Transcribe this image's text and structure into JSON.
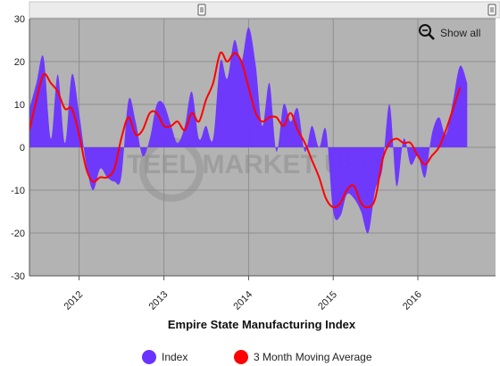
{
  "chart_data": {
    "type": "area",
    "title": "Empire State Manufacturing Index",
    "xlabel": "",
    "ylabel": "",
    "ylim": [
      -30,
      30
    ],
    "y_ticks": [
      30,
      20,
      10,
      0,
      -10,
      -20,
      -30
    ],
    "x_range": [
      "2011-06-01",
      "2016-12-01"
    ],
    "x_ticks": [
      {
        "label": "2012",
        "date": "2012-01-01"
      },
      {
        "label": "2013",
        "date": "2013-01-01"
      },
      {
        "label": "2014",
        "date": "2014-01-01"
      },
      {
        "label": "2015",
        "date": "2015-01-01"
      },
      {
        "label": "2016",
        "date": "2016-01-01"
      }
    ],
    "grid": true,
    "legend_position": "bottom",
    "series": [
      {
        "name": "Index",
        "type": "area",
        "color": "#6a33ff",
        "points": [
          [
            "2011-06-01",
            9
          ],
          [
            "2011-07-01",
            15
          ],
          [
            "2011-08-01",
            21
          ],
          [
            "2011-09-01",
            2
          ],
          [
            "2011-10-01",
            17
          ],
          [
            "2011-11-01",
            1
          ],
          [
            "2011-12-01",
            17
          ],
          [
            "2012-01-01",
            8
          ],
          [
            "2012-02-01",
            -4
          ],
          [
            "2012-03-01",
            -10
          ],
          [
            "2012-04-01",
            -5
          ],
          [
            "2012-05-01",
            -7
          ],
          [
            "2012-06-01",
            -8
          ],
          [
            "2012-07-01",
            -7
          ],
          [
            "2012-08-01",
            11
          ],
          [
            "2012-09-01",
            6
          ],
          [
            "2012-10-01",
            -2
          ],
          [
            "2012-11-01",
            2
          ],
          [
            "2012-12-01",
            10
          ],
          [
            "2013-01-01",
            10
          ],
          [
            "2013-02-01",
            5
          ],
          [
            "2013-03-01",
            1
          ],
          [
            "2013-04-01",
            5
          ],
          [
            "2013-05-01",
            13
          ],
          [
            "2013-06-01",
            2
          ],
          [
            "2013-07-01",
            5
          ],
          [
            "2013-08-01",
            2
          ],
          [
            "2013-09-01",
            20
          ],
          [
            "2013-10-01",
            16
          ],
          [
            "2013-11-01",
            25
          ],
          [
            "2013-12-01",
            20
          ],
          [
            "2014-01-01",
            28
          ],
          [
            "2014-02-01",
            19
          ],
          [
            "2014-03-01",
            5
          ],
          [
            "2014-04-01",
            15
          ],
          [
            "2014-05-01",
            -1
          ],
          [
            "2014-06-01",
            10
          ],
          [
            "2014-07-01",
            6
          ],
          [
            "2014-08-01",
            9
          ],
          [
            "2014-09-01",
            -1
          ],
          [
            "2014-10-01",
            5
          ],
          [
            "2014-11-01",
            0
          ],
          [
            "2014-12-01",
            4
          ],
          [
            "2015-01-01",
            -15
          ],
          [
            "2015-02-01",
            -16
          ],
          [
            "2015-03-01",
            -11
          ],
          [
            "2015-04-01",
            -12
          ],
          [
            "2015-05-01",
            -15
          ],
          [
            "2015-06-01",
            -20
          ],
          [
            "2015-07-01",
            -10
          ],
          [
            "2015-08-01",
            -5
          ],
          [
            "2015-09-01",
            10
          ],
          [
            "2015-10-01",
            -9
          ],
          [
            "2015-11-01",
            2
          ],
          [
            "2015-12-01",
            -4
          ],
          [
            "2016-01-01",
            -2
          ],
          [
            "2016-02-01",
            -7
          ],
          [
            "2016-03-01",
            3
          ],
          [
            "2016-04-01",
            7
          ],
          [
            "2016-05-01",
            3
          ],
          [
            "2016-06-01",
            11
          ],
          [
            "2016-07-01",
            19
          ],
          [
            "2016-08-01",
            15
          ]
        ]
      },
      {
        "name": "3 Month Moving Average",
        "type": "line",
        "color": "#ff0000",
        "points": [
          [
            "2011-06-01",
            4
          ],
          [
            "2011-07-01",
            11
          ],
          [
            "2011-08-01",
            17
          ],
          [
            "2011-09-01",
            15
          ],
          [
            "2011-10-01",
            13
          ],
          [
            "2011-11-01",
            9
          ],
          [
            "2011-12-01",
            9
          ],
          [
            "2012-01-01",
            3
          ],
          [
            "2012-02-01",
            -5
          ],
          [
            "2012-03-01",
            -8
          ],
          [
            "2012-04-01",
            -7
          ],
          [
            "2012-05-01",
            -7
          ],
          [
            "2012-06-01",
            -5
          ],
          [
            "2012-07-01",
            2
          ],
          [
            "2012-08-01",
            7
          ],
          [
            "2012-09-01",
            3
          ],
          [
            "2012-10-01",
            4
          ],
          [
            "2012-11-01",
            8
          ],
          [
            "2012-12-01",
            8
          ],
          [
            "2013-01-01",
            5
          ],
          [
            "2013-02-01",
            5
          ],
          [
            "2013-03-01",
            6
          ],
          [
            "2013-04-01",
            4
          ],
          [
            "2013-05-01",
            8
          ],
          [
            "2013-06-01",
            6
          ],
          [
            "2013-07-01",
            11
          ],
          [
            "2013-08-01",
            15
          ],
          [
            "2013-09-01",
            22
          ],
          [
            "2013-10-01",
            20
          ],
          [
            "2013-11-01",
            22
          ],
          [
            "2013-12-01",
            20
          ],
          [
            "2014-01-01",
            14
          ],
          [
            "2014-02-01",
            8
          ],
          [
            "2014-03-01",
            6
          ],
          [
            "2014-04-01",
            7
          ],
          [
            "2014-05-01",
            7
          ],
          [
            "2014-06-01",
            5
          ],
          [
            "2014-07-01",
            8
          ],
          [
            "2014-08-01",
            4
          ],
          [
            "2014-09-01",
            1
          ],
          [
            "2014-10-01",
            -3
          ],
          [
            "2014-11-01",
            -7
          ],
          [
            "2014-12-01",
            -12
          ],
          [
            "2015-01-01",
            -14
          ],
          [
            "2015-02-01",
            -13
          ],
          [
            "2015-03-01",
            -10
          ],
          [
            "2015-04-01",
            -9
          ],
          [
            "2015-05-01",
            -13
          ],
          [
            "2015-06-01",
            -14
          ],
          [
            "2015-07-01",
            -12
          ],
          [
            "2015-08-01",
            -3
          ],
          [
            "2015-09-01",
            1
          ],
          [
            "2015-10-01",
            2
          ],
          [
            "2015-11-01",
            1
          ],
          [
            "2015-12-01",
            1
          ],
          [
            "2016-01-01",
            -2
          ],
          [
            "2016-02-01",
            -4
          ],
          [
            "2016-03-01",
            -2
          ],
          [
            "2016-04-01",
            0
          ],
          [
            "2016-05-01",
            4
          ],
          [
            "2016-06-01",
            9
          ],
          [
            "2016-07-01",
            14
          ]
        ]
      }
    ]
  },
  "navigator": {
    "handle_icon": "drag-handle-icon"
  },
  "zoom": {
    "label": "Show all",
    "icon": "zoom-out-icon"
  },
  "watermark": {
    "text": "TEEL MARKET UPD"
  },
  "legend": {
    "items": [
      {
        "label": "Index",
        "color": "#6a33ff"
      },
      {
        "label": "3 Month Moving Average",
        "color": "#ff0000"
      }
    ]
  }
}
